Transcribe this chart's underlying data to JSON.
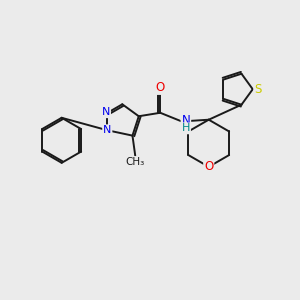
{
  "background_color": "#ebebeb",
  "bond_color": "#1a1a1a",
  "atom_colors": {
    "N": "#0000ee",
    "O": "#ee0000",
    "S": "#cccc00",
    "C": "#1a1a1a",
    "H": "#1a1a1a"
  },
  "figsize": [
    3.0,
    3.0
  ],
  "dpi": 100,
  "lw": 1.4,
  "xlim": [
    -4.5,
    4.0
  ],
  "ylim": [
    -3.2,
    3.2
  ]
}
